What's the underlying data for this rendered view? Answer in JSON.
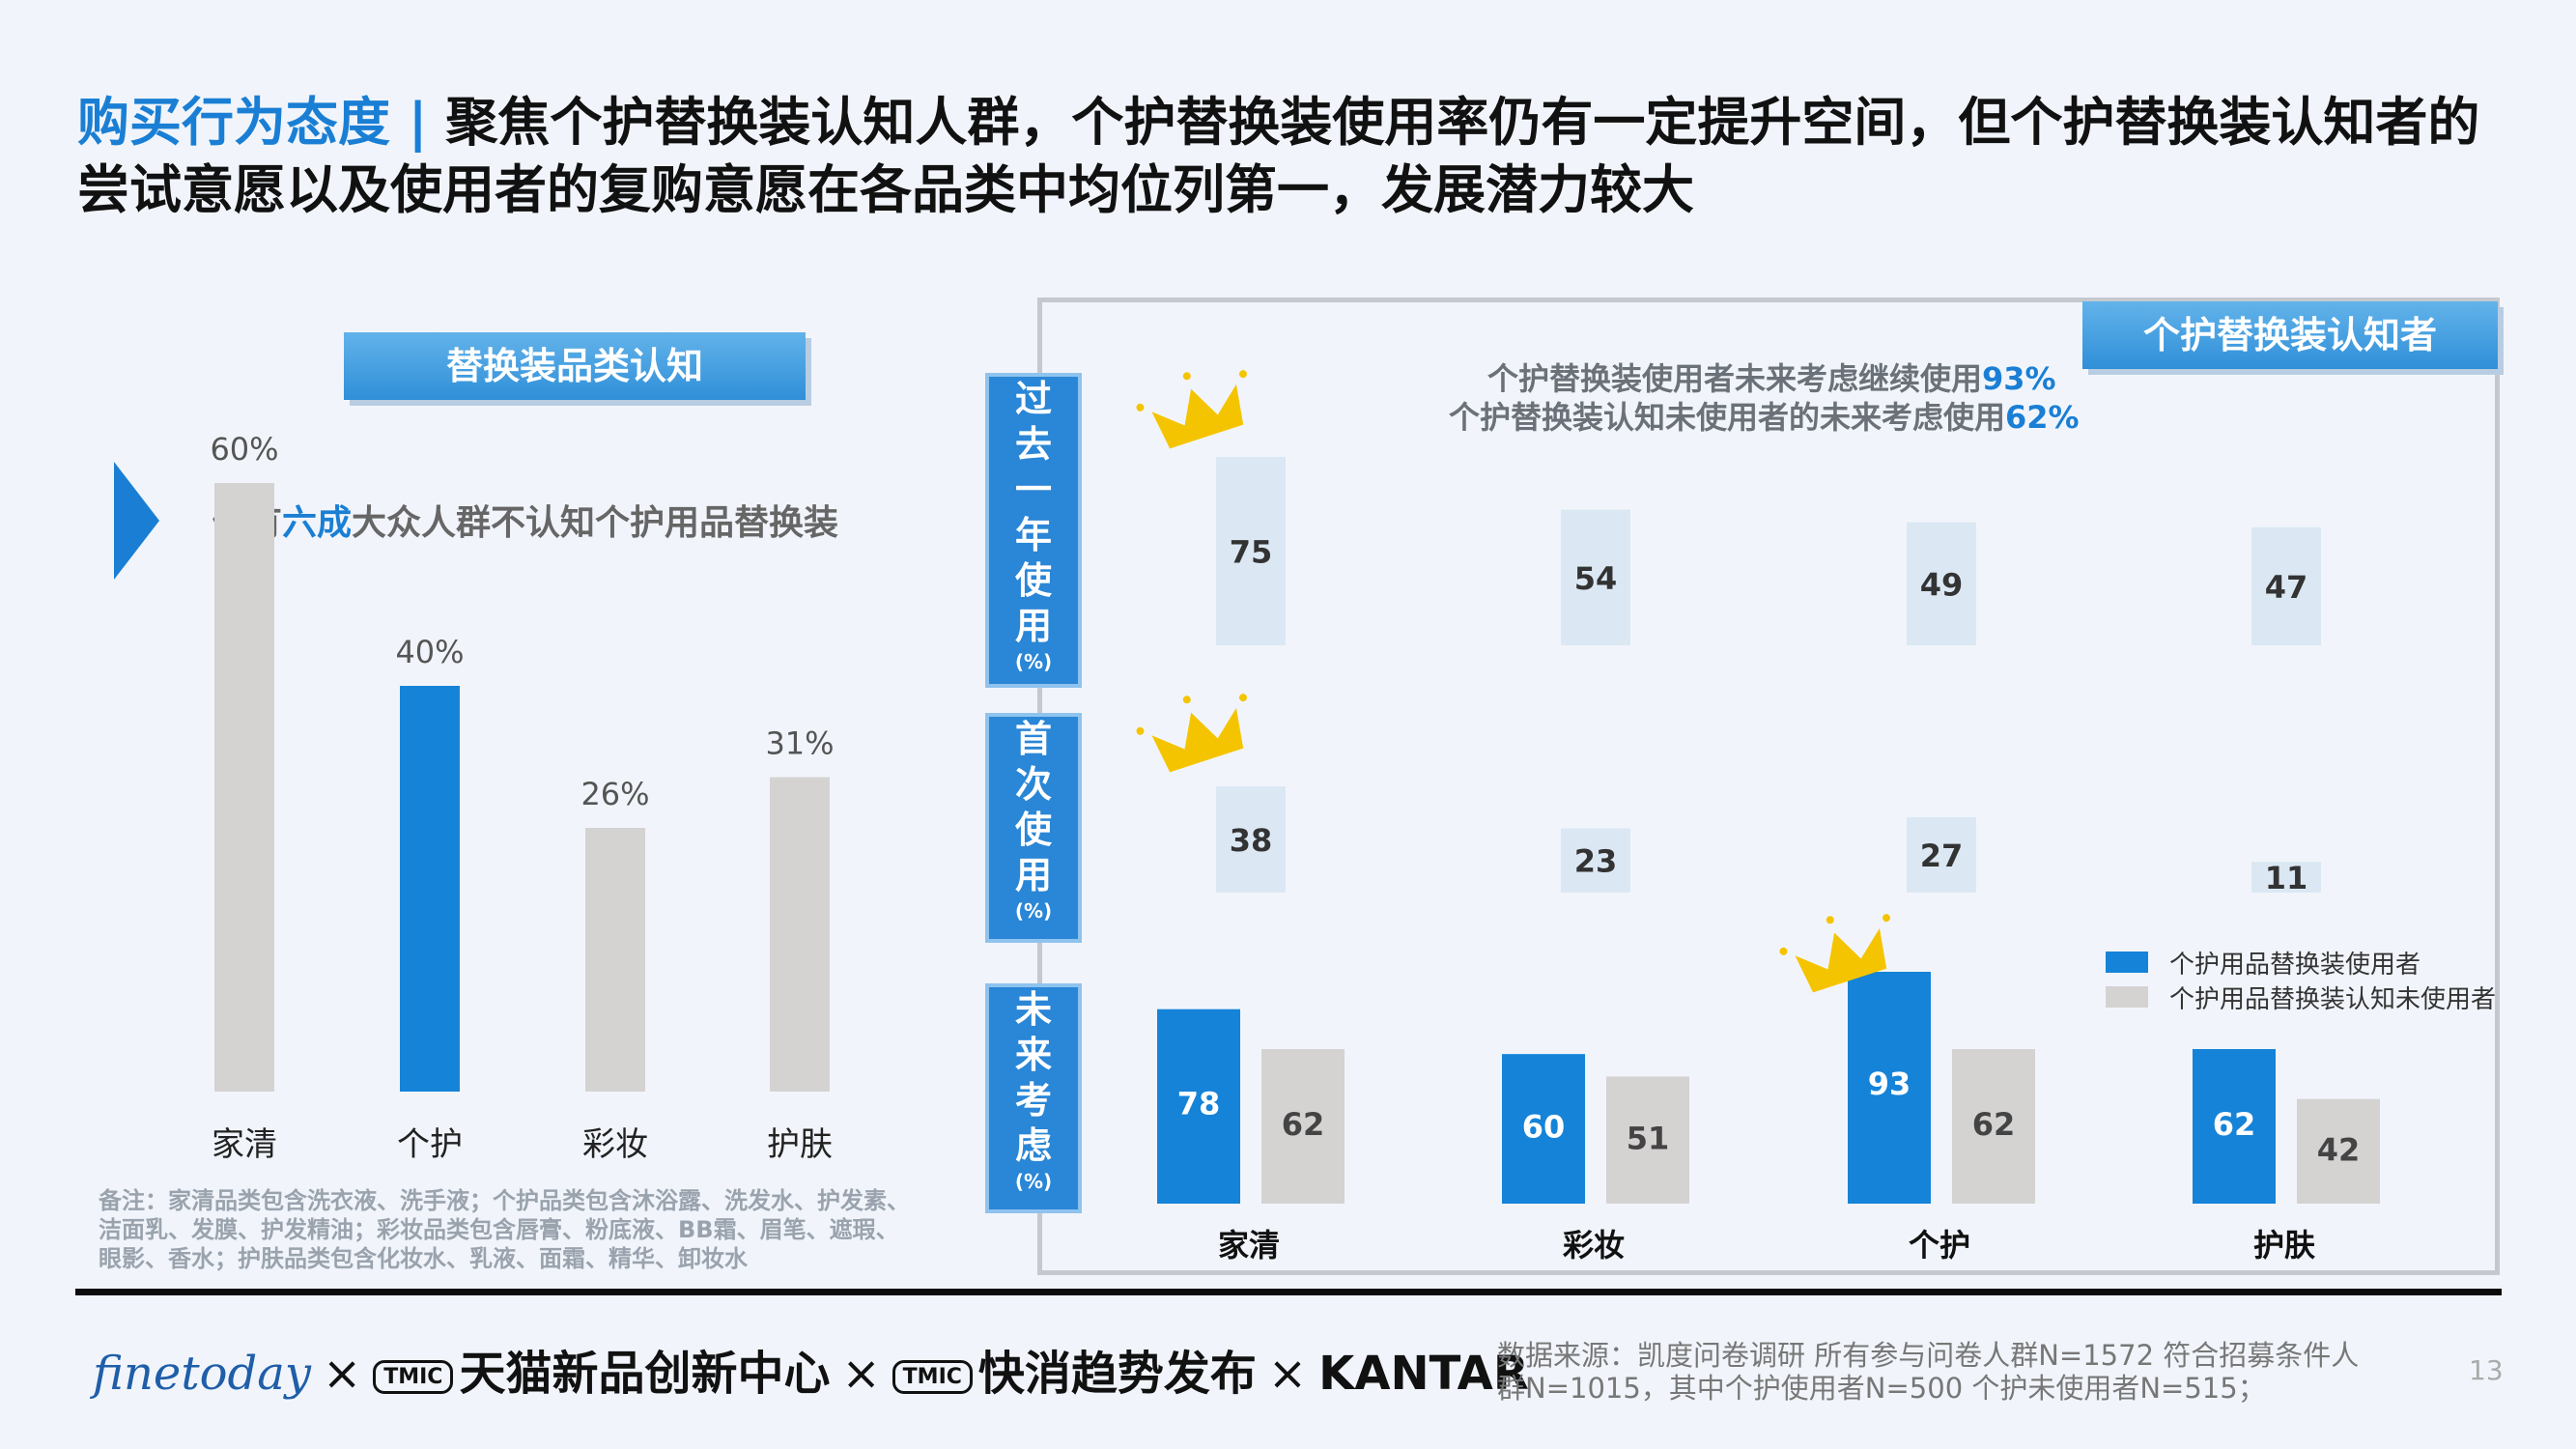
{
  "title": {
    "lead": "购买行为态度 | ",
    "rest": "聚焦个护替换装认知人群，个护替换装使用率仍有一定提升空间，但个护替换装认知者的尝试意愿以及使用者的复购意愿在各品类中均位列第一，发展潜力较大"
  },
  "left_panel": {
    "tag": "替换装品类认知",
    "subtitle_pre": "仍有",
    "subtitle_highlight": "六成",
    "subtitle_post": "大众人群不认知个护用品替换装",
    "note": "备注：家清品类包含洗衣液、洗手液；个护品类包含沐浴露、洗发水、护发素、洁面乳、发膜、护发精油；彩妆品类包含唇膏、粉底液、BB霜、眉笔、遮瑕、眼影、香水；护肤品类包含化妆水、乳液、面霜、精华、卸妆水"
  },
  "right_panel": {
    "tag": "个护替换装认知者",
    "metric1_text": "个护替换装使用者未来考虑继续使用",
    "metric1_value": "93%",
    "metric2_text": "个护替换装认知未使用者的未来考虑使用",
    "metric2_value": "62%",
    "row_labels": [
      {
        "text": "过去一年使用",
        "unit": "(%)"
      },
      {
        "text": "首次使用",
        "unit": "(%)"
      },
      {
        "text": "未来考虑",
        "unit": "(%)"
      }
    ],
    "legend": [
      "个护用品替换装使用者",
      "个护用品替换装认知未使用者"
    ]
  },
  "colors": {
    "accent": "#1a7fd4",
    "bar_blue": "#1583d8",
    "bar_gray": "#d5d2d2",
    "bar_light": "#dbe8f4",
    "crown": "#f5c400"
  },
  "chart_data": [
    {
      "type": "bar",
      "title": "替换装品类认知",
      "categories": [
        "家清",
        "个护",
        "彩妆",
        "护肤"
      ],
      "values": [
        60,
        40,
        26,
        31
      ],
      "labels": [
        "60%",
        "40%",
        "26%",
        "31%"
      ],
      "highlight": "个护",
      "ylim": [
        0,
        60
      ]
    },
    {
      "type": "bar",
      "title": "过去一年使用",
      "categories": [
        "家清",
        "彩妆",
        "个护",
        "护肤"
      ],
      "values": [
        75,
        54,
        49,
        47
      ],
      "crown": "家清",
      "ylim": [
        0,
        75
      ]
    },
    {
      "type": "bar",
      "title": "首次使用",
      "categories": [
        "家清",
        "彩妆",
        "个护",
        "护肤"
      ],
      "values": [
        38,
        23,
        27,
        11
      ],
      "crown": "家清",
      "ylim": [
        0,
        38
      ]
    },
    {
      "type": "bar",
      "title": "未来考虑",
      "categories": [
        "家清",
        "彩妆",
        "个护",
        "护肤"
      ],
      "series": [
        {
          "name": "个护用品替换装使用者",
          "values": [
            78,
            60,
            93,
            62
          ]
        },
        {
          "name": "个护用品替换装认知未使用者",
          "values": [
            62,
            51,
            62,
            42
          ]
        }
      ],
      "crown": "个护",
      "ylim": [
        0,
        93
      ]
    }
  ],
  "footer": {
    "logo_finetoday": "finetoday",
    "cross": "×",
    "logo_tmic_badge": "TMIC",
    "logo_tmall": "天猫新品创新中心",
    "logo_fmcg": "快消趋势发布",
    "logo_kantar": "KANTAR",
    "source": "数据来源：凯度问卷调研 所有参与问卷人群N=1572 符合招募条件人群N=1015，其中个护使用者N=500 个护未使用者N=515；",
    "page": "13"
  }
}
